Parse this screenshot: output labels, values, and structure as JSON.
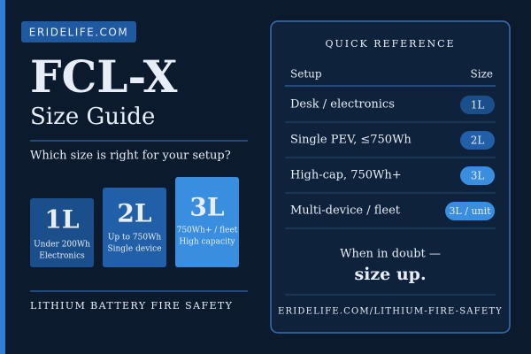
{
  "badge": "ERIDELIFE.COM",
  "title": "FCL-X",
  "subtitle": "Size Guide",
  "question": "Which size is right for your setup?",
  "sizes": [
    {
      "size": "1L",
      "lines": [
        "Under 200Wh",
        "Electronics"
      ]
    },
    {
      "size": "2L",
      "lines": [
        "Up to 750Wh",
        "Single device"
      ]
    },
    {
      "size": "3L",
      "lines": [
        "750Wh+ / fleet",
        "High capacity"
      ]
    }
  ],
  "footer_left": "LITHIUM BATTERY FIRE SAFETY",
  "reference": {
    "title": "QUICK REFERENCE",
    "columns": [
      "Setup",
      "Size"
    ],
    "rows": [
      [
        "Desk / electronics",
        "1L"
      ],
      [
        "Single PEV, ≤750Wh",
        "2L"
      ],
      [
        "High-cap, 750Wh+",
        "3L"
      ],
      [
        "Multi-device / fleet",
        "3L / unit"
      ]
    ],
    "note": "When in doubt —",
    "emphasis": "size up.",
    "url": "ERIDELIFE.COM/LITHIUM-FIRE-SAFETY"
  }
}
